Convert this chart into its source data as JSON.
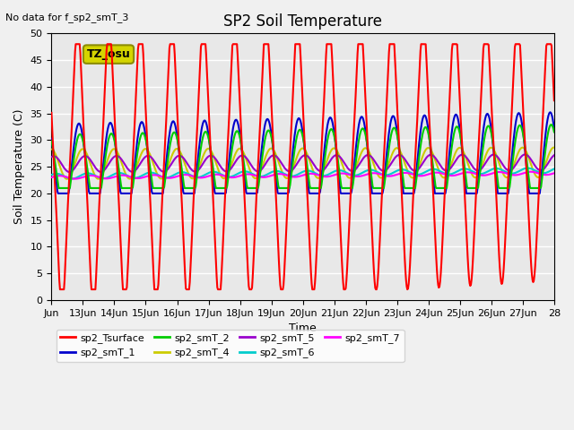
{
  "title": "SP2 Soil Temperature",
  "ylabel": "Soil Temperature (C)",
  "xlabel": "Time",
  "annotation_no_data": "No data for f_sp2_smT_3",
  "annotation_tz": "TZ_osu",
  "ylim": [
    0,
    50
  ],
  "n_days": 16,
  "tick_labels": [
    "Jun",
    "13Jun",
    "14Jun",
    "15Jun",
    "16Jun",
    "17Jun",
    "18Jun",
    "19Jun",
    "20Jun",
    "21Jun",
    "22Jun",
    "23Jun",
    "24Jun",
    "25Jun",
    "26Jun",
    "27Jun",
    "28"
  ],
  "background_color": "#e8e8e8",
  "grid_color": "#ffffff",
  "series_order": [
    "sp2_Tsurface",
    "sp2_smT_1",
    "sp2_smT_2",
    "sp2_smT_4",
    "sp2_smT_5",
    "sp2_smT_6",
    "sp2_smT_7"
  ],
  "series": {
    "sp2_Tsurface": {
      "color": "#ff0000",
      "lw": 1.5,
      "zorder": 5
    },
    "sp2_smT_1": {
      "color": "#0000cc",
      "lw": 1.5,
      "zorder": 4
    },
    "sp2_smT_2": {
      "color": "#00cc00",
      "lw": 1.5,
      "zorder": 4
    },
    "sp2_smT_4": {
      "color": "#cccc00",
      "lw": 1.5,
      "zorder": 3
    },
    "sp2_smT_5": {
      "color": "#9900cc",
      "lw": 1.5,
      "zorder": 3
    },
    "sp2_smT_6": {
      "color": "#00cccc",
      "lw": 1.5,
      "zorder": 3
    },
    "sp2_smT_7": {
      "color": "#ff00ff",
      "lw": 1.5,
      "zorder": 3
    }
  },
  "legend_entries": [
    {
      "label": "sp2_Tsurface",
      "color": "#ff0000"
    },
    {
      "label": "sp2_smT_1",
      "color": "#0000cc"
    },
    {
      "label": "sp2_smT_2",
      "color": "#00cc00"
    },
    {
      "label": "sp2_smT_4",
      "color": "#cccc00"
    },
    {
      "label": "sp2_smT_5",
      "color": "#9900cc"
    },
    {
      "label": "sp2_smT_6",
      "color": "#00cccc"
    },
    {
      "label": "sp2_smT_7",
      "color": "#ff00ff"
    }
  ]
}
